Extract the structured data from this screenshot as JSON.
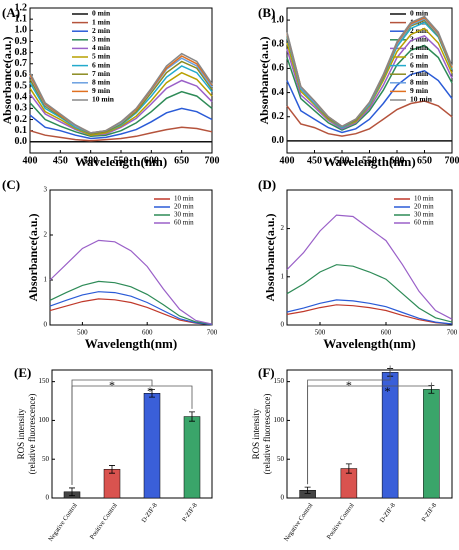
{
  "chart_data": [
    {
      "type": "line",
      "panel_label": "(A)",
      "xlabel": "Wavelength(nm)",
      "ylabel": "Absorbance(a.u.)",
      "x": [
        400,
        425,
        450,
        475,
        500,
        525,
        550,
        575,
        600,
        625,
        650,
        675,
        700
      ],
      "xlim": [
        400,
        700
      ],
      "xticks": [
        400,
        450,
        500,
        550,
        600,
        650,
        700
      ],
      "ylim": [
        -0.1,
        1.2
      ],
      "yticks": [
        {
          "value": 0,
          "label": "0.0"
        },
        {
          "value": 0.1,
          "label": "0.1"
        },
        {
          "value": 0.2,
          "label": "0.2"
        },
        {
          "value": 0.3,
          "label": "0.3"
        },
        {
          "value": 0.4,
          "label": "0.4"
        },
        {
          "value": 0.5,
          "label": "0.5"
        },
        {
          "value": 0.6,
          "label": "0.6"
        },
        {
          "value": 0.7,
          "label": "0.7"
        },
        {
          "value": 0.8,
          "label": "0.8"
        },
        {
          "value": 0.9,
          "label": "0.9"
        },
        {
          "value": 1.0,
          "label": "1.0"
        },
        {
          "value": 1.1,
          "label": "1.1"
        },
        {
          "value": 1.2,
          "label": "1.2"
        }
      ],
      "legend": "upper left",
      "series": [
        {
          "name": "0 min",
          "color": "#111111",
          "values": [
            0,
            0,
            0,
            0,
            0,
            0,
            0,
            0,
            0,
            0,
            0,
            0,
            0
          ]
        },
        {
          "name": "1 min",
          "color": "#b5533c",
          "values": [
            0.1,
            0.06,
            0.04,
            0.02,
            0.01,
            0.02,
            0.03,
            0.05,
            0.08,
            0.11,
            0.13,
            0.12,
            0.09
          ]
        },
        {
          "name": "2 min",
          "color": "#2a5bd7",
          "values": [
            0.24,
            0.13,
            0.1,
            0.06,
            0.03,
            0.04,
            0.07,
            0.11,
            0.18,
            0.26,
            0.3,
            0.27,
            0.2
          ]
        },
        {
          "name": "3 min",
          "color": "#2e8b57",
          "values": [
            0.35,
            0.2,
            0.14,
            0.09,
            0.05,
            0.06,
            0.1,
            0.17,
            0.27,
            0.39,
            0.45,
            0.41,
            0.3
          ]
        },
        {
          "name": "4 min",
          "color": "#9a60c8",
          "values": [
            0.43,
            0.25,
            0.18,
            0.11,
            0.06,
            0.07,
            0.13,
            0.21,
            0.34,
            0.48,
            0.55,
            0.5,
            0.36
          ]
        },
        {
          "name": "5 min",
          "color": "#b8a000",
          "values": [
            0.48,
            0.27,
            0.2,
            0.12,
            0.06,
            0.08,
            0.14,
            0.23,
            0.37,
            0.53,
            0.62,
            0.56,
            0.41
          ]
        },
        {
          "name": "6 min",
          "color": "#22aacc",
          "values": [
            0.53,
            0.3,
            0.22,
            0.13,
            0.07,
            0.09,
            0.15,
            0.26,
            0.41,
            0.58,
            0.68,
            0.62,
            0.45
          ]
        },
        {
          "name": "7 min",
          "color": "#8a8a20",
          "values": [
            0.56,
            0.32,
            0.23,
            0.14,
            0.07,
            0.09,
            0.16,
            0.27,
            0.44,
            0.62,
            0.72,
            0.66,
            0.47
          ]
        },
        {
          "name": "8 min",
          "color": "#6aa0e0",
          "values": [
            0.59,
            0.33,
            0.24,
            0.14,
            0.08,
            0.1,
            0.17,
            0.29,
            0.46,
            0.65,
            0.75,
            0.68,
            0.49
          ]
        },
        {
          "name": "9 min",
          "color": "#e07020",
          "values": [
            0.6,
            0.34,
            0.24,
            0.15,
            0.08,
            0.1,
            0.18,
            0.29,
            0.47,
            0.66,
            0.77,
            0.7,
            0.51
          ]
        },
        {
          "name": "10 min",
          "color": "#888888",
          "values": [
            0.62,
            0.35,
            0.25,
            0.15,
            0.08,
            0.1,
            0.18,
            0.3,
            0.48,
            0.68,
            0.79,
            0.72,
            0.52
          ]
        }
      ]
    },
    {
      "type": "line",
      "panel_label": "(B)",
      "xlabel": "Wavelength(nm)",
      "ylabel": "Absorbance(a.u.)",
      "x": [
        400,
        425,
        450,
        475,
        500,
        525,
        550,
        575,
        600,
        625,
        650,
        675,
        700
      ],
      "xlim": [
        400,
        700
      ],
      "xticks": [
        400,
        450,
        500,
        550,
        600,
        650,
        700
      ],
      "ylim": [
        -0.1,
        1.1
      ],
      "yticks": [
        {
          "value": 0,
          "label": "0.0"
        },
        {
          "value": 0.2,
          "label": "0.2"
        },
        {
          "value": 0.4,
          "label": "0.4"
        },
        {
          "value": 0.6,
          "label": "0.6"
        },
        {
          "value": 0.8,
          "label": "0.8"
        },
        {
          "value": 1.0,
          "label": "1.0"
        }
      ],
      "legend": "upper right",
      "series": [
        {
          "name": "0 min",
          "color": "#111111",
          "values": [
            0,
            0,
            0,
            0,
            0,
            0,
            0,
            0,
            0,
            0,
            0,
            0,
            0
          ]
        },
        {
          "name": "1 min",
          "color": "#b5533c",
          "values": [
            0.29,
            0.14,
            0.11,
            0.06,
            0.04,
            0.06,
            0.1,
            0.18,
            0.26,
            0.31,
            0.33,
            0.29,
            0.2
          ]
        },
        {
          "name": "2 min",
          "color": "#2a5bd7",
          "values": [
            0.5,
            0.25,
            0.18,
            0.11,
            0.07,
            0.1,
            0.18,
            0.31,
            0.46,
            0.55,
            0.58,
            0.5,
            0.35
          ]
        },
        {
          "name": "3 min",
          "color": "#2e8b57",
          "values": [
            0.69,
            0.35,
            0.25,
            0.15,
            0.09,
            0.14,
            0.25,
            0.42,
            0.63,
            0.75,
            0.79,
            0.69,
            0.48
          ]
        },
        {
          "name": "4 min",
          "color": "#9a60c8",
          "values": [
            0.76,
            0.38,
            0.28,
            0.17,
            0.1,
            0.15,
            0.27,
            0.46,
            0.69,
            0.83,
            0.87,
            0.76,
            0.52
          ]
        },
        {
          "name": "5 min",
          "color": "#b8a000",
          "values": [
            0.81,
            0.41,
            0.3,
            0.18,
            0.11,
            0.16,
            0.29,
            0.5,
            0.74,
            0.88,
            0.93,
            0.81,
            0.56
          ]
        },
        {
          "name": "6 min",
          "color": "#22aacc",
          "values": [
            0.86,
            0.43,
            0.31,
            0.19,
            0.11,
            0.17,
            0.3,
            0.52,
            0.78,
            0.93,
            0.98,
            0.86,
            0.59
          ]
        },
        {
          "name": "7 min",
          "color": "#8a8a20",
          "values": [
            0.87,
            0.44,
            0.32,
            0.19,
            0.12,
            0.17,
            0.31,
            0.53,
            0.8,
            0.95,
            1.0,
            0.87,
            0.6
          ]
        },
        {
          "name": "8 min",
          "color": "#6aa0e0",
          "values": [
            0.88,
            0.44,
            0.32,
            0.2,
            0.12,
            0.18,
            0.31,
            0.54,
            0.8,
            0.96,
            1.01,
            0.88,
            0.61
          ]
        },
        {
          "name": "9 min",
          "color": "#e07020",
          "values": [
            0.89,
            0.45,
            0.33,
            0.2,
            0.12,
            0.18,
            0.32,
            0.54,
            0.81,
            0.97,
            1.02,
            0.89,
            0.61
          ]
        },
        {
          "name": "10 min",
          "color": "#888888",
          "values": [
            0.9,
            0.45,
            0.33,
            0.2,
            0.12,
            0.18,
            0.32,
            0.55,
            0.82,
            0.98,
            1.03,
            0.9,
            0.62
          ]
        }
      ]
    },
    {
      "type": "line",
      "panel_label": "(C)",
      "xlabel": "Wavelength(nm)",
      "ylabel": "Absorbance(a.u.)",
      "x": [
        450,
        475,
        500,
        525,
        550,
        575,
        600,
        625,
        650,
        675,
        700
      ],
      "xlim": [
        450,
        700
      ],
      "xticks": [
        500,
        600,
        700
      ],
      "ylim": [
        0,
        3
      ],
      "yticks": [
        0,
        1,
        2,
        3
      ],
      "legend": "upper right",
      "series": [
        {
          "name": "10 min",
          "color": "#c0392b",
          "values": [
            0.32,
            0.42,
            0.52,
            0.58,
            0.56,
            0.5,
            0.39,
            0.25,
            0.11,
            0.04,
            0.01
          ]
        },
        {
          "name": "20 min",
          "color": "#2a5bd7",
          "values": [
            0.42,
            0.55,
            0.67,
            0.74,
            0.72,
            0.64,
            0.5,
            0.32,
            0.14,
            0.05,
            0.01
          ]
        },
        {
          "name": "30 min",
          "color": "#2e8b57",
          "values": [
            0.55,
            0.72,
            0.88,
            0.97,
            0.94,
            0.85,
            0.68,
            0.45,
            0.2,
            0.07,
            0.02
          ]
        },
        {
          "name": "60 min",
          "color": "#9a60c8",
          "values": [
            1.0,
            1.35,
            1.7,
            1.88,
            1.85,
            1.65,
            1.3,
            0.8,
            0.35,
            0.1,
            0.02
          ]
        }
      ]
    },
    {
      "type": "line",
      "panel_label": "(D)",
      "xlabel": "Wavelength(nm)",
      "ylabel": "Absorbance(a.u.)",
      "x": [
        450,
        475,
        500,
        525,
        550,
        575,
        600,
        625,
        650,
        675,
        700
      ],
      "xlim": [
        450,
        700
      ],
      "xticks": [
        500,
        600,
        700
      ],
      "ylim": [
        0,
        2.8
      ],
      "yticks": [
        0,
        1,
        2
      ],
      "legend": "upper right",
      "series": [
        {
          "name": "10 min",
          "color": "#c0392b",
          "values": [
            0.22,
            0.28,
            0.36,
            0.42,
            0.4,
            0.36,
            0.3,
            0.2,
            0.11,
            0.05,
            0.02
          ]
        },
        {
          "name": "20 min",
          "color": "#2a5bd7",
          "values": [
            0.27,
            0.35,
            0.45,
            0.52,
            0.5,
            0.45,
            0.38,
            0.26,
            0.14,
            0.06,
            0.02
          ]
        },
        {
          "name": "30 min",
          "color": "#2e8b57",
          "values": [
            0.65,
            0.85,
            1.1,
            1.25,
            1.22,
            1.1,
            0.95,
            0.65,
            0.35,
            0.15,
            0.06
          ]
        },
        {
          "name": "60 min",
          "color": "#9a60c8",
          "values": [
            1.15,
            1.5,
            1.95,
            2.28,
            2.25,
            2.0,
            1.75,
            1.25,
            0.7,
            0.3,
            0.12
          ]
        }
      ]
    },
    {
      "type": "bar",
      "panel_label": "(E)",
      "ylabel": "ROS intensity",
      "ylabel2": "(relative fluorescence)",
      "categories": [
        "Negative Control",
        "Positive Control",
        "D-ZIF-8",
        "P-ZIF-8"
      ],
      "values": [
        8,
        37,
        135,
        105
      ],
      "errors": [
        5,
        5,
        5,
        6
      ],
      "colors": [
        "#444444",
        "#d9534f",
        "#3a5fd9",
        "#3aa56a"
      ],
      "ylim": [
        0,
        165
      ],
      "yticks": [
        0,
        50,
        100,
        150
      ],
      "annotations": [
        "*",
        "*"
      ]
    },
    {
      "type": "bar",
      "panel_label": "(F)",
      "ylabel": "ROS intensity",
      "ylabel2": "(relative fluorescence)",
      "categories": [
        "Negative Control",
        "Positive Control",
        "D-ZIF-8",
        "P-ZIF-8"
      ],
      "values": [
        10,
        38,
        162,
        140
      ],
      "errors": [
        4,
        6,
        5,
        5
      ],
      "colors": [
        "#444444",
        "#d9534f",
        "#3a5fd9",
        "#3aa56a"
      ],
      "ylim": [
        0,
        165
      ],
      "yticks": [
        0,
        50,
        100,
        150
      ],
      "annotations": [
        "*",
        "*"
      ]
    }
  ]
}
